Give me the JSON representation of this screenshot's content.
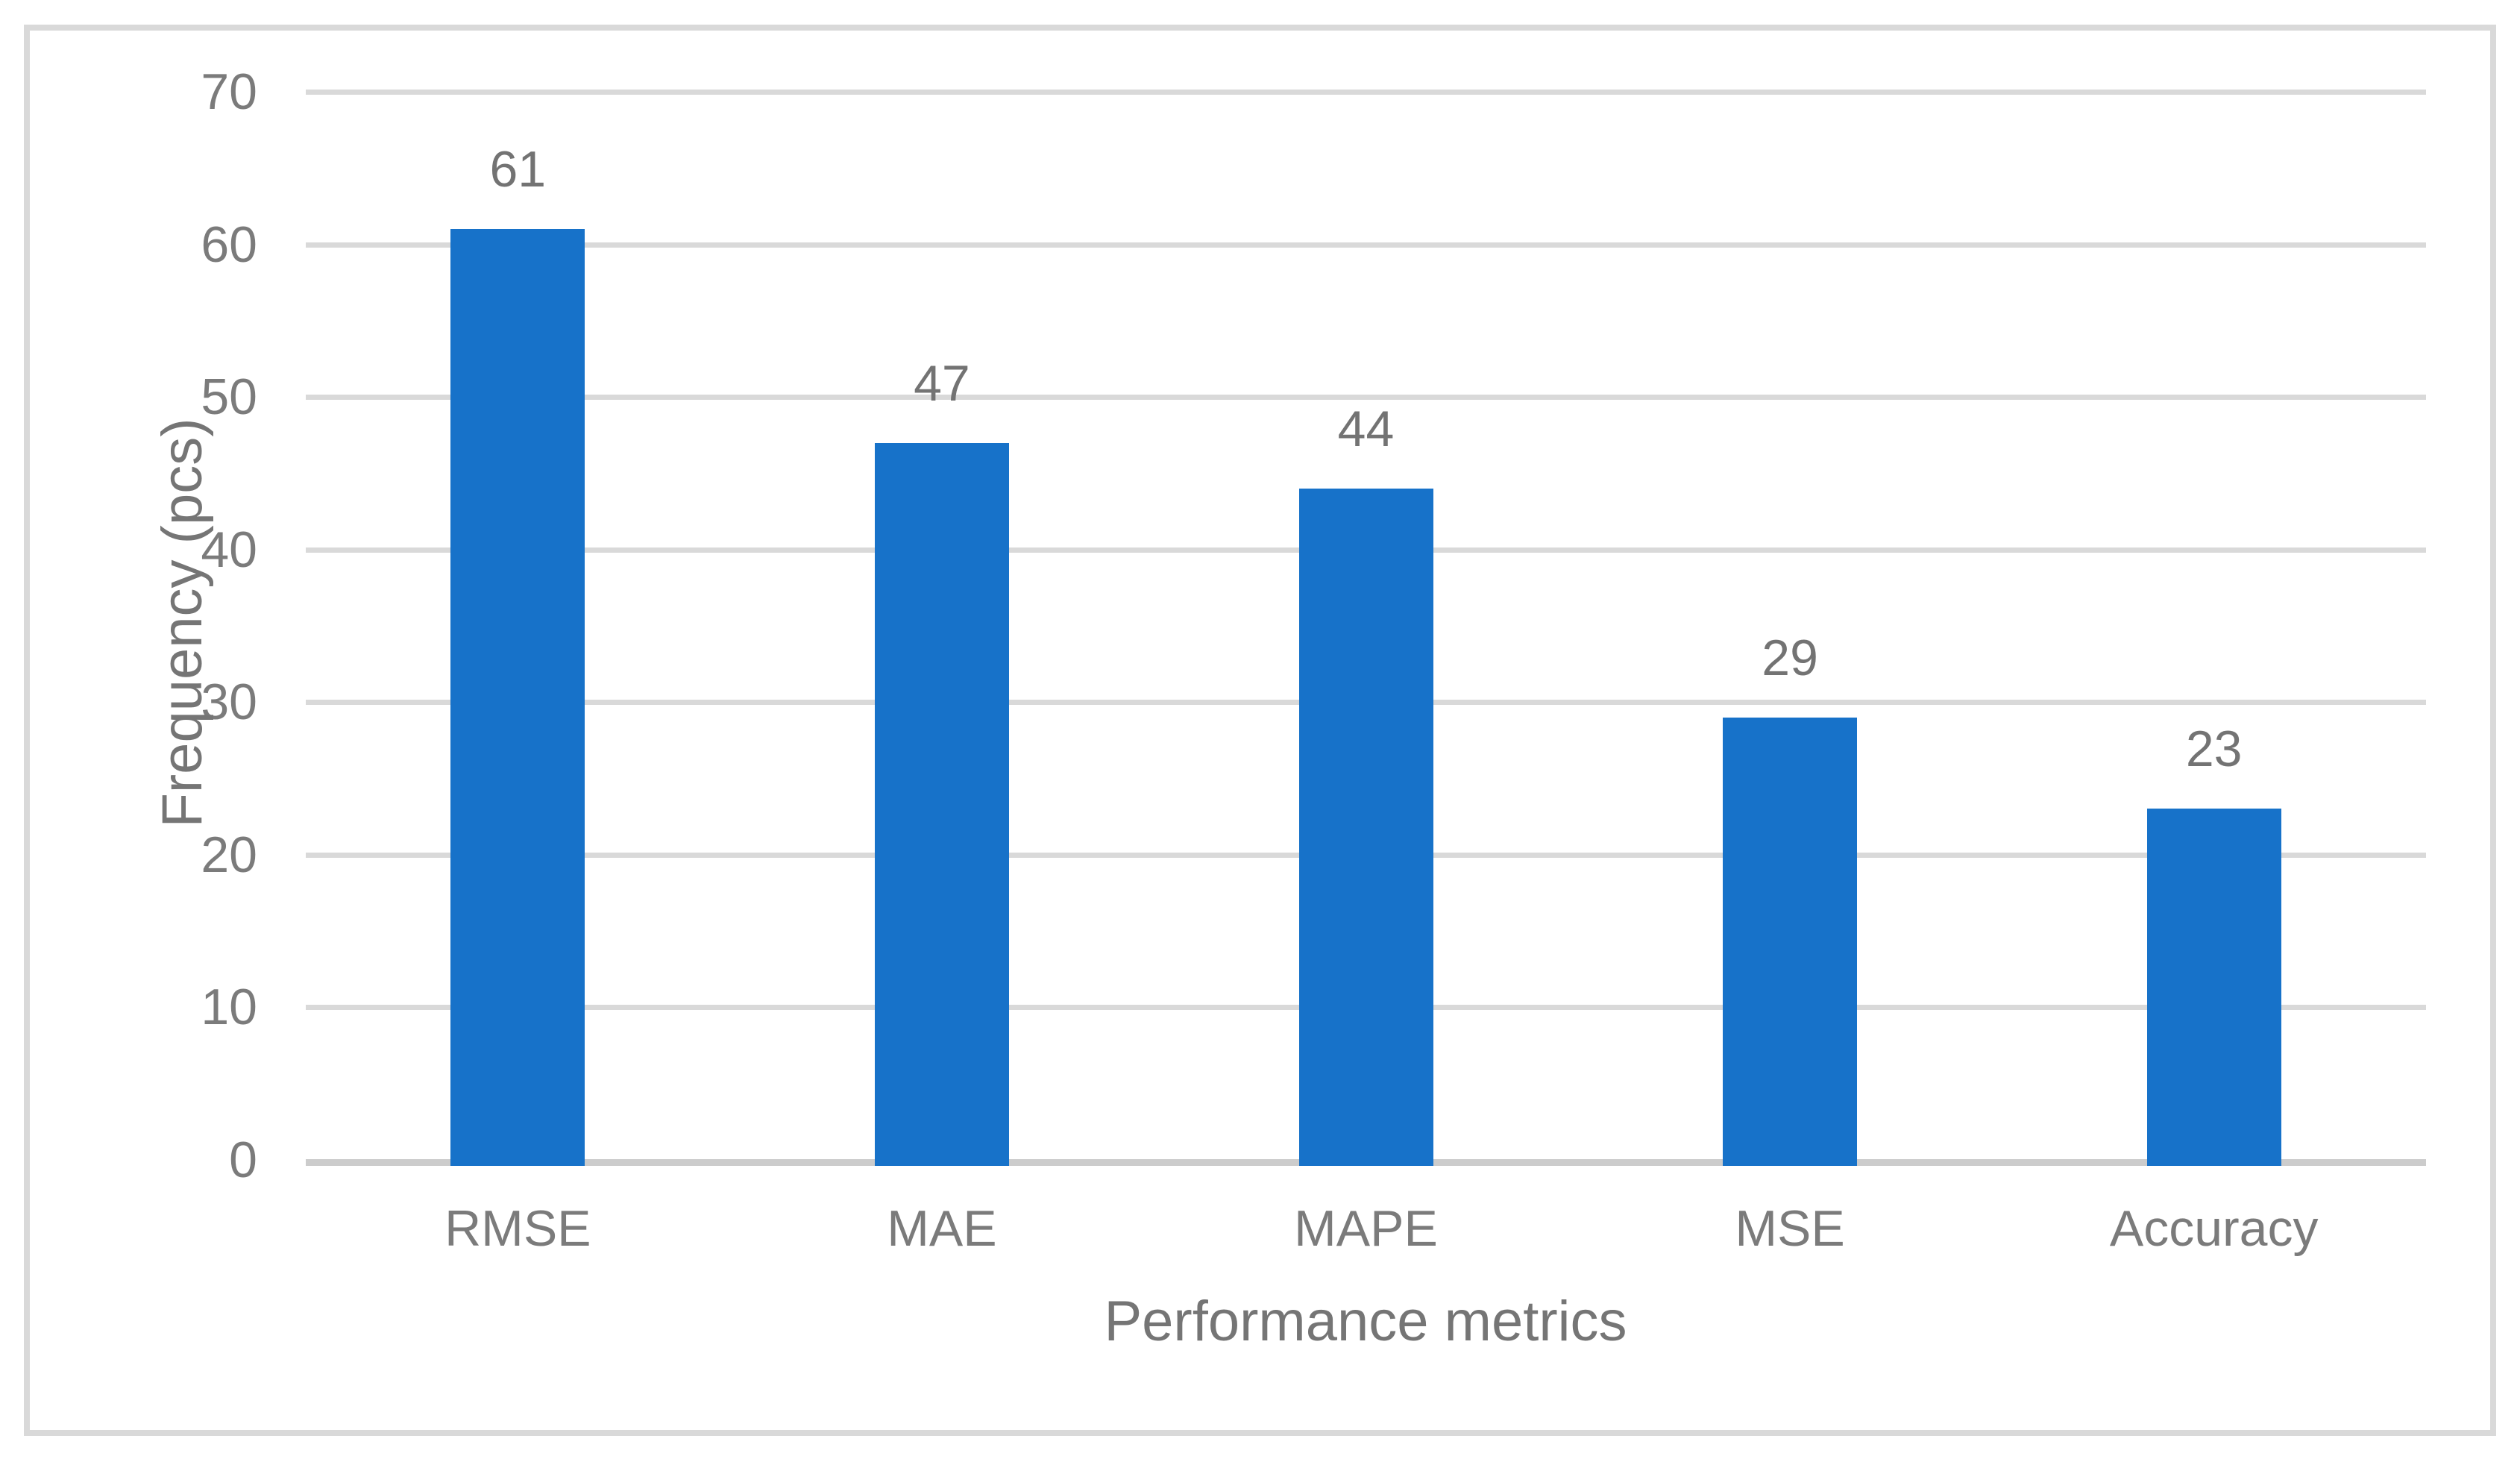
{
  "chart_data": {
    "type": "bar",
    "title": "",
    "categories": [
      "RMSE",
      "MAE",
      "MAPE",
      "MSE",
      "Accuracy"
    ],
    "values": [
      61,
      47,
      44,
      29,
      23
    ],
    "data_labels": [
      "61",
      "47",
      "44",
      "29",
      "23"
    ],
    "xlabel": "Performance metrics",
    "ylabel": "Frequency (pcs)",
    "ylim": [
      0,
      70
    ],
    "yticks": [
      0,
      10,
      20,
      30,
      40,
      50,
      60,
      70
    ],
    "grid": "horizontal",
    "legend": "none",
    "colors": {
      "bar": "#1772C9",
      "gridline": "#D9D9D9",
      "axis_line": "#CCCCCC",
      "frame_border": "#D9D9D9",
      "tick_label": "#7B7B7B",
      "data_label": "#737373",
      "axis_title": "#757575"
    }
  }
}
